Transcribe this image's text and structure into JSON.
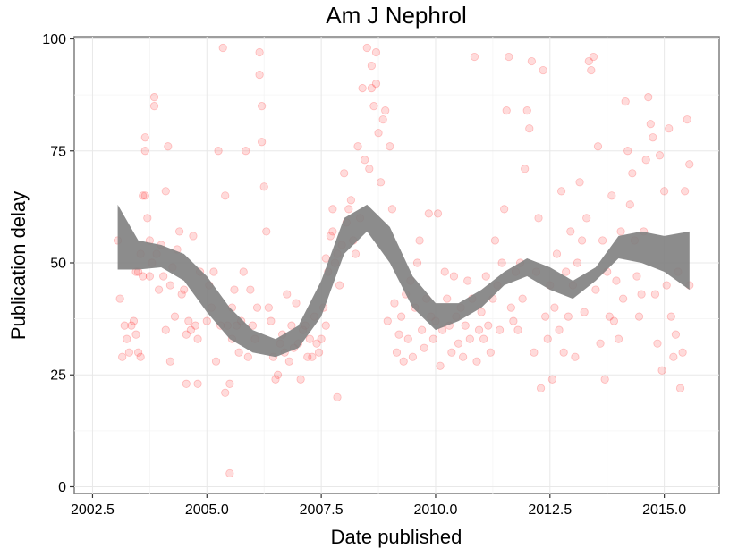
{
  "chart_data": {
    "type": "scatter",
    "title": "Am J Nephrol",
    "xlabel": "Date published",
    "ylabel": "Publication delay",
    "xlim": [
      2002.1,
      2016.2
    ],
    "ylim": [
      -1.5,
      100.5
    ],
    "xticks": [
      2002.5,
      2005.0,
      2007.5,
      2010.0,
      2012.5,
      2015.0
    ],
    "xtick_labels": [
      "2002.5",
      "2005.0",
      "2007.5",
      "2010.0",
      "2012.5",
      "2015.0"
    ],
    "yticks": [
      0,
      25,
      50,
      75,
      100
    ],
    "ytick_labels": [
      "0",
      "25",
      "50",
      "75",
      "100"
    ],
    "grid": true,
    "legend": "none",
    "point_color": "#ff0000",
    "band_color": "#7f7f7f",
    "point_note": "several hundred semi-transparent points; listed values approximate the visible cloud",
    "points": [
      [
        2003.05,
        55
      ],
      [
        2003.1,
        42
      ],
      [
        2003.15,
        29
      ],
      [
        2003.2,
        36
      ],
      [
        2003.25,
        33
      ],
      [
        2003.3,
        30
      ],
      [
        2003.35,
        36
      ],
      [
        2003.4,
        37
      ],
      [
        2003.45,
        48
      ],
      [
        2003.45,
        34
      ],
      [
        2003.5,
        30
      ],
      [
        2003.5,
        48
      ],
      [
        2003.55,
        29
      ],
      [
        2003.55,
        52
      ],
      [
        2003.6,
        47
      ],
      [
        2003.6,
        65
      ],
      [
        2003.65,
        75
      ],
      [
        2003.65,
        78
      ],
      [
        2003.65,
        65
      ],
      [
        2003.7,
        60
      ],
      [
        2003.75,
        55
      ],
      [
        2003.75,
        47
      ],
      [
        2003.8,
        50
      ],
      [
        2003.85,
        87
      ],
      [
        2003.85,
        85
      ],
      [
        2003.9,
        52
      ],
      [
        2003.95,
        44
      ],
      [
        2004.0,
        54
      ],
      [
        2004.05,
        47
      ],
      [
        2004.1,
        35
      ],
      [
        2004.1,
        66
      ],
      [
        2004.15,
        76
      ],
      [
        2004.2,
        45
      ],
      [
        2004.2,
        28
      ],
      [
        2004.25,
        49
      ],
      [
        2004.3,
        38
      ],
      [
        2004.35,
        53
      ],
      [
        2004.4,
        57
      ],
      [
        2004.45,
        43
      ],
      [
        2004.5,
        44
      ],
      [
        2004.55,
        34
      ],
      [
        2004.55,
        23
      ],
      [
        2004.6,
        37
      ],
      [
        2004.65,
        35
      ],
      [
        2004.7,
        56
      ],
      [
        2004.75,
        36
      ],
      [
        2004.8,
        23
      ],
      [
        2004.8,
        33
      ],
      [
        2004.85,
        48
      ],
      [
        2005.0,
        37
      ],
      [
        2005.05,
        45
      ],
      [
        2005.1,
        40
      ],
      [
        2005.15,
        48
      ],
      [
        2005.2,
        28
      ],
      [
        2005.25,
        75
      ],
      [
        2005.3,
        36
      ],
      [
        2005.35,
        98
      ],
      [
        2005.4,
        21
      ],
      [
        2005.4,
        65
      ],
      [
        2005.45,
        36
      ],
      [
        2005.5,
        3
      ],
      [
        2005.5,
        23
      ],
      [
        2005.55,
        33
      ],
      [
        2005.55,
        40
      ],
      [
        2005.6,
        44
      ],
      [
        2005.65,
        36
      ],
      [
        2005.7,
        30
      ],
      [
        2005.75,
        37
      ],
      [
        2005.8,
        48
      ],
      [
        2005.85,
        75
      ],
      [
        2005.9,
        29
      ],
      [
        2005.95,
        44
      ],
      [
        2006.0,
        36
      ],
      [
        2006.05,
        33
      ],
      [
        2006.1,
        40
      ],
      [
        2006.15,
        97
      ],
      [
        2006.15,
        92
      ],
      [
        2006.2,
        85
      ],
      [
        2006.2,
        77
      ],
      [
        2006.25,
        67
      ],
      [
        2006.3,
        57
      ],
      [
        2006.35,
        40
      ],
      [
        2006.4,
        37
      ],
      [
        2006.45,
        29
      ],
      [
        2006.5,
        24
      ],
      [
        2006.55,
        25
      ],
      [
        2006.6,
        32
      ],
      [
        2006.65,
        34
      ],
      [
        2006.7,
        30
      ],
      [
        2006.75,
        43
      ],
      [
        2006.8,
        28
      ],
      [
        2006.85,
        36
      ],
      [
        2006.9,
        31
      ],
      [
        2006.95,
        41
      ],
      [
        2007.0,
        32
      ],
      [
        2007.05,
        24
      ],
      [
        2007.1,
        35
      ],
      [
        2007.15,
        36
      ],
      [
        2007.2,
        29
      ],
      [
        2007.25,
        33
      ],
      [
        2007.3,
        29
      ],
      [
        2007.35,
        38
      ],
      [
        2007.4,
        32
      ],
      [
        2007.45,
        30
      ],
      [
        2007.5,
        33
      ],
      [
        2007.55,
        40
      ],
      [
        2007.6,
        36
      ],
      [
        2007.6,
        51
      ],
      [
        2007.65,
        48
      ],
      [
        2007.7,
        56
      ],
      [
        2007.75,
        57
      ],
      [
        2007.75,
        62
      ],
      [
        2007.8,
        50
      ],
      [
        2007.85,
        52
      ],
      [
        2007.85,
        20
      ],
      [
        2007.9,
        45
      ],
      [
        2007.95,
        54
      ],
      [
        2008.0,
        70
      ],
      [
        2008.05,
        59
      ],
      [
        2008.1,
        62
      ],
      [
        2008.15,
        64
      ],
      [
        2008.2,
        55
      ],
      [
        2008.25,
        52
      ],
      [
        2008.3,
        76
      ],
      [
        2008.35,
        60
      ],
      [
        2008.4,
        89
      ],
      [
        2008.45,
        73
      ],
      [
        2008.5,
        98
      ],
      [
        2008.55,
        71
      ],
      [
        2008.6,
        89
      ],
      [
        2008.6,
        94
      ],
      [
        2008.65,
        85
      ],
      [
        2008.7,
        97
      ],
      [
        2008.7,
        90
      ],
      [
        2008.75,
        79
      ],
      [
        2008.8,
        68
      ],
      [
        2008.85,
        82
      ],
      [
        2008.9,
        84
      ],
      [
        2008.95,
        37
      ],
      [
        2009.0,
        76
      ],
      [
        2009.05,
        62
      ],
      [
        2009.1,
        41
      ],
      [
        2009.15,
        30
      ],
      [
        2009.2,
        34
      ],
      [
        2009.25,
        38
      ],
      [
        2009.3,
        28
      ],
      [
        2009.35,
        43
      ],
      [
        2009.4,
        33
      ],
      [
        2009.45,
        46
      ],
      [
        2009.5,
        29
      ],
      [
        2009.55,
        40
      ],
      [
        2009.6,
        50
      ],
      [
        2009.65,
        55
      ],
      [
        2009.7,
        35
      ],
      [
        2009.75,
        31
      ],
      [
        2009.8,
        42
      ],
      [
        2009.85,
        61
      ],
      [
        2009.9,
        38
      ],
      [
        2009.95,
        33
      ],
      [
        2010.0,
        37
      ],
      [
        2010.05,
        61
      ],
      [
        2010.1,
        27
      ],
      [
        2010.15,
        35
      ],
      [
        2010.2,
        48
      ],
      [
        2010.25,
        42
      ],
      [
        2010.3,
        36
      ],
      [
        2010.35,
        30
      ],
      [
        2010.4,
        47
      ],
      [
        2010.45,
        38
      ],
      [
        2010.5,
        32
      ],
      [
        2010.55,
        40
      ],
      [
        2010.6,
        29
      ],
      [
        2010.65,
        36
      ],
      [
        2010.7,
        46
      ],
      [
        2010.75,
        33
      ],
      [
        2010.8,
        42
      ],
      [
        2010.85,
        96
      ],
      [
        2010.9,
        28
      ],
      [
        2010.95,
        35
      ],
      [
        2011.0,
        39
      ],
      [
        2011.05,
        33
      ],
      [
        2011.1,
        47
      ],
      [
        2011.15,
        36
      ],
      [
        2011.2,
        30
      ],
      [
        2011.25,
        42
      ],
      [
        2011.3,
        55
      ],
      [
        2011.35,
        45
      ],
      [
        2011.4,
        35
      ],
      [
        2011.45,
        50
      ],
      [
        2011.5,
        62
      ],
      [
        2011.55,
        84
      ],
      [
        2011.6,
        96
      ],
      [
        2011.65,
        40
      ],
      [
        2011.7,
        37
      ],
      [
        2011.75,
        48
      ],
      [
        2011.8,
        35
      ],
      [
        2011.85,
        50
      ],
      [
        2011.9,
        42
      ],
      [
        2011.95,
        71
      ],
      [
        2012.0,
        84
      ],
      [
        2012.05,
        80
      ],
      [
        2012.1,
        95
      ],
      [
        2012.15,
        30
      ],
      [
        2012.2,
        48
      ],
      [
        2012.25,
        60
      ],
      [
        2012.3,
        22
      ],
      [
        2012.35,
        93
      ],
      [
        2012.4,
        38
      ],
      [
        2012.45,
        33
      ],
      [
        2012.5,
        45
      ],
      [
        2012.55,
        24
      ],
      [
        2012.6,
        40
      ],
      [
        2012.65,
        52
      ],
      [
        2012.7,
        35
      ],
      [
        2012.75,
        66
      ],
      [
        2012.8,
        30
      ],
      [
        2012.85,
        48
      ],
      [
        2012.9,
        38
      ],
      [
        2012.95,
        57
      ],
      [
        2013.0,
        45
      ],
      [
        2013.05,
        29
      ],
      [
        2013.1,
        50
      ],
      [
        2013.15,
        68
      ],
      [
        2013.2,
        55
      ],
      [
        2013.25,
        39
      ],
      [
        2013.3,
        60
      ],
      [
        2013.35,
        95
      ],
      [
        2013.4,
        93
      ],
      [
        2013.45,
        96
      ],
      [
        2013.5,
        44
      ],
      [
        2013.55,
        76
      ],
      [
        2013.6,
        32
      ],
      [
        2013.65,
        55
      ],
      [
        2013.7,
        24
      ],
      [
        2013.75,
        48
      ],
      [
        2013.8,
        38
      ],
      [
        2013.85,
        65
      ],
      [
        2013.9,
        37
      ],
      [
        2013.95,
        46
      ],
      [
        2014.0,
        33
      ],
      [
        2014.05,
        57
      ],
      [
        2014.1,
        42
      ],
      [
        2014.15,
        86
      ],
      [
        2014.2,
        75
      ],
      [
        2014.25,
        63
      ],
      [
        2014.3,
        70
      ],
      [
        2014.35,
        55
      ],
      [
        2014.4,
        47
      ],
      [
        2014.45,
        38
      ],
      [
        2014.5,
        43
      ],
      [
        2014.55,
        57
      ],
      [
        2014.6,
        73
      ],
      [
        2014.65,
        87
      ],
      [
        2014.7,
        81
      ],
      [
        2014.75,
        78
      ],
      [
        2014.8,
        43
      ],
      [
        2014.85,
        32
      ],
      [
        2014.9,
        74
      ],
      [
        2014.95,
        26
      ],
      [
        2015.0,
        66
      ],
      [
        2015.05,
        45
      ],
      [
        2015.1,
        80
      ],
      [
        2015.15,
        38
      ],
      [
        2015.2,
        29
      ],
      [
        2015.25,
        34
      ],
      [
        2015.3,
        48
      ],
      [
        2015.35,
        22
      ],
      [
        2015.4,
        30
      ],
      [
        2015.45,
        66
      ],
      [
        2015.5,
        82
      ],
      [
        2015.55,
        45
      ],
      [
        2015.55,
        72
      ]
    ],
    "band": {
      "x": [
        2003.05,
        2003.5,
        2004.0,
        2004.5,
        2005.0,
        2005.5,
        2006.0,
        2006.5,
        2007.0,
        2007.5,
        2008.0,
        2008.5,
        2009.0,
        2009.5,
        2010.0,
        2010.5,
        2011.0,
        2011.5,
        2012.0,
        2012.5,
        2013.0,
        2013.5,
        2014.0,
        2014.5,
        2015.0,
        2015.55
      ],
      "lower": [
        48.5,
        48.5,
        49,
        46,
        39,
        33,
        30,
        29,
        31,
        38,
        52,
        57,
        50,
        40,
        35,
        37,
        40,
        45,
        47,
        44,
        42,
        46,
        51,
        50,
        48,
        44
      ],
      "upper": [
        63,
        55,
        54,
        52,
        47,
        40,
        35,
        33,
        36,
        46,
        60,
        63,
        58,
        47,
        41,
        41,
        44,
        48,
        51,
        49,
        46,
        49,
        56,
        57,
        56,
        57
      ]
    }
  }
}
